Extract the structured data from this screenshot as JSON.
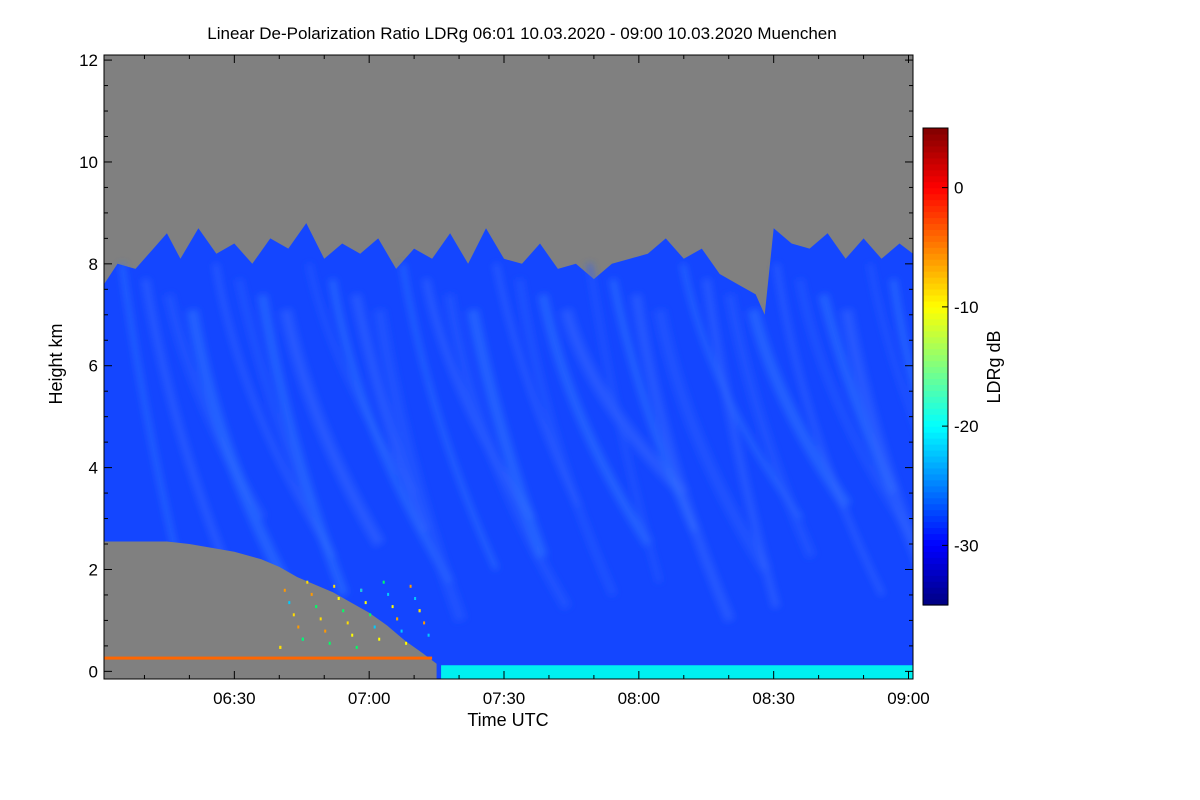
{
  "chart_data": {
    "type": "heatmap",
    "title": "Linear De-Polarization Ratio LDRg   06:01 10.03.2020 - 09:00 10.03.2020 Muenchen",
    "xlabel": "Time UTC",
    "ylabel": "Height km",
    "x_tick_labels": [
      "06:30",
      "07:00",
      "07:30",
      "08:00",
      "08:30",
      "09:00"
    ],
    "x_ticks_minutes": [
      390,
      420,
      450,
      480,
      510,
      540
    ],
    "xlim_minutes": [
      361,
      541
    ],
    "y_ticks": [
      0,
      2,
      4,
      6,
      8,
      10,
      12
    ],
    "ylim": [
      -0.15,
      12.1
    ],
    "colorbar": {
      "label": "LDRg dB",
      "ticks": [
        0,
        -10,
        -20,
        -30
      ],
      "range": [
        -35,
        5
      ],
      "colormap": "jet"
    },
    "colors": {
      "no_data": "#808080",
      "cirrus_ldr": "#1446ff",
      "surface_layer_ldr": "#00f0f0",
      "noise_ldr": "#ff6600"
    },
    "cloud_top_km": [
      [
        361,
        7.6
      ],
      [
        364,
        8.0
      ],
      [
        368,
        7.9
      ],
      [
        372,
        8.3
      ],
      [
        375,
        8.6
      ],
      [
        378,
        8.1
      ],
      [
        382,
        8.7
      ],
      [
        386,
        8.2
      ],
      [
        390,
        8.4
      ],
      [
        394,
        8.0
      ],
      [
        398,
        8.5
      ],
      [
        402,
        8.3
      ],
      [
        406,
        8.8
      ],
      [
        410,
        8.1
      ],
      [
        414,
        8.4
      ],
      [
        418,
        8.2
      ],
      [
        422,
        8.5
      ],
      [
        426,
        7.9
      ],
      [
        430,
        8.3
      ],
      [
        434,
        8.1
      ],
      [
        438,
        8.6
      ],
      [
        442,
        8.0
      ],
      [
        446,
        8.7
      ],
      [
        450,
        8.1
      ],
      [
        454,
        8.0
      ],
      [
        458,
        8.4
      ],
      [
        462,
        7.9
      ],
      [
        466,
        8.0
      ],
      [
        470,
        7.7
      ],
      [
        474,
        8.0
      ],
      [
        478,
        8.1
      ],
      [
        482,
        8.2
      ],
      [
        486,
        8.5
      ],
      [
        490,
        8.1
      ],
      [
        494,
        8.3
      ],
      [
        498,
        7.8
      ],
      [
        502,
        7.6
      ],
      [
        506,
        7.4
      ],
      [
        508,
        7.0
      ],
      [
        510,
        8.7
      ],
      [
        514,
        8.4
      ],
      [
        518,
        8.3
      ],
      [
        522,
        8.6
      ],
      [
        526,
        8.1
      ],
      [
        530,
        8.5
      ],
      [
        534,
        8.1
      ],
      [
        538,
        8.4
      ],
      [
        541,
        8.2
      ]
    ],
    "lower_gap_top_km": [
      [
        361,
        2.55
      ],
      [
        375,
        2.55
      ],
      [
        380,
        2.5
      ],
      [
        390,
        2.35
      ],
      [
        396,
        2.2
      ],
      [
        400,
        2.05
      ],
      [
        404,
        1.85
      ],
      [
        408,
        1.7
      ],
      [
        412,
        1.55
      ],
      [
        416,
        1.35
      ],
      [
        420,
        1.15
      ],
      [
        424,
        0.9
      ],
      [
        428,
        0.6
      ],
      [
        432,
        0.35
      ],
      [
        435,
        0.15
      ]
    ]
  }
}
